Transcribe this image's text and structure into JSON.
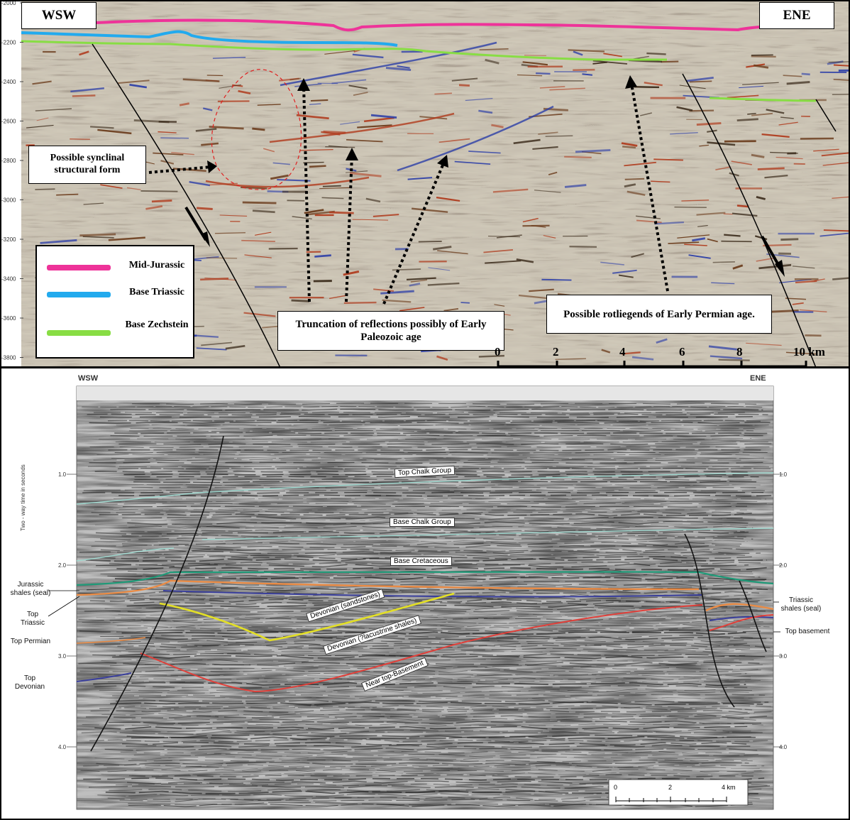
{
  "top": {
    "corner_left": "WSW",
    "corner_right": "ENE",
    "depth_ticks": [
      "-2000",
      "-2200",
      "-2400",
      "-2600",
      "-2800",
      "-3000",
      "-3200",
      "-3400",
      "-3600",
      "-3800"
    ],
    "callout_syncline": "Possible synclinal structural form",
    "callout_truncation": "Truncation of reflections possibly of Early Paleozoic age",
    "callout_rotliegend": "Possible rotliegends of Early Permian age.",
    "legend": [
      {
        "label": "Mid-Jurassic",
        "color": "#ee3399"
      },
      {
        "label": "Base Triassic",
        "color": "#22aaee"
      },
      {
        "label": "Base Zechstein",
        "color": "#88dd44"
      }
    ],
    "scale_ticks": [
      "0",
      "2",
      "4",
      "6",
      "8",
      "10 km"
    ]
  },
  "bottom": {
    "corner_left": "WSW",
    "corner_right": "ENE",
    "axis_title": "Two - way time in seconds",
    "time_ticks": [
      "1.0",
      "2.0",
      "3.0",
      "4.0"
    ],
    "horizons": {
      "top_chalk": "Top Chalk Group",
      "base_chalk": "Base Chalk Group",
      "base_cretaceous": "Base Cretaceous",
      "devonian_sandstones": "Devonian (sandstones)",
      "devonian_lacustrine": "Devonian (?lacustrine shales)",
      "near_top_basement": "Near top-Basement"
    },
    "left_labels": {
      "jurassic_shales": "Jurassic shales (seal)",
      "top_triassic": "Top Triassic",
      "top_permian": "Top Permian",
      "top_devonian": "Top Devonian"
    },
    "right_labels": {
      "triassic_shales": "Triassic shales (seal)",
      "top_basement": "Top basement"
    },
    "scale_ticks": [
      "0",
      "2",
      "4 km"
    ]
  },
  "colors": {
    "mid_jurassic": "#ee3399",
    "base_triassic": "#22aaee",
    "base_zechstein": "#88dd44",
    "top_chalk": "#9fd8cf",
    "base_cretaceous": "#1f9a78",
    "top_triassic_orange": "#e98b45",
    "top_devonian_blue": "#3a3f9c",
    "devonian_yellow": "#e3df26",
    "basement_red": "#e0403a"
  }
}
